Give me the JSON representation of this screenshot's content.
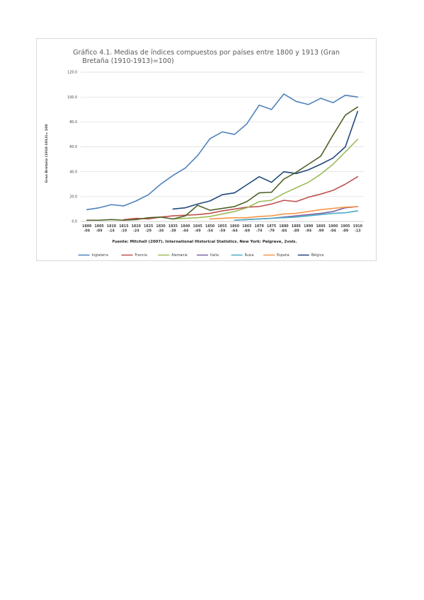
{
  "chart_data": {
    "type": "line",
    "title": "Gráfico 4.1. Medias de índices compuestos por países entre 1800 y 1913 (Gran Bretaña (1910-1913)=100)",
    "title_lines": [
      "Gráfico 4.1. Medias de índices compuestos por países entre 1800 y 1913 (Gran",
      "Bretaña (1910-1913)=100)"
    ],
    "ylabel": "Gran Bretaña (1910-1913)= 100",
    "xlabel": "",
    "source": "Fuente: Mitchell (2007). International  Historical Statistics. New York: Palgrave, 2vols.",
    "ylim": [
      0,
      120
    ],
    "yticks": [
      "0.0",
      "20.0",
      "40.0",
      "60.0",
      "80.0",
      "100.0",
      "120.0"
    ],
    "categories": [
      [
        "1800",
        "-04"
      ],
      [
        "1805",
        "-09"
      ],
      [
        "1810",
        "-14"
      ],
      [
        "1815",
        "-19"
      ],
      [
        "1820",
        "-24"
      ],
      [
        "1825",
        "-29"
      ],
      [
        "1830",
        "-34"
      ],
      [
        "1835",
        "-39"
      ],
      [
        "1840",
        "-44"
      ],
      [
        "1845",
        "-49"
      ],
      [
        "1850",
        "-54"
      ],
      [
        "1855",
        "-59"
      ],
      [
        "1860",
        "-64"
      ],
      [
        "1865",
        "-69"
      ],
      [
        "1870",
        "-74"
      ],
      [
        "1875",
        "-79"
      ],
      [
        "1880",
        "-84"
      ],
      [
        "1885",
        "-89"
      ],
      [
        "1890",
        "-94"
      ],
      [
        "1895",
        "-99"
      ],
      [
        "1900",
        "-04"
      ],
      [
        "1905",
        "-09"
      ],
      [
        "1910",
        "-13"
      ]
    ],
    "grid": true,
    "legend_position": "bottom",
    "series": [
      {
        "name": "Inglaterra",
        "color": "#4f81bd",
        "values": [
          9.5,
          11,
          13.5,
          12.5,
          16.5,
          21.5,
          30,
          37,
          43,
          53,
          66.5,
          72,
          70,
          78.5,
          93.5,
          90,
          102.5,
          96.5,
          94,
          99,
          95.5,
          101.5,
          100
        ]
      },
      {
        "name": "Francia",
        "color": "#c0504d",
        "values": [
          null,
          null,
          null,
          1.5,
          2.5,
          2,
          3.5,
          4.5,
          5,
          5.5,
          6.5,
          8.5,
          10,
          11.5,
          12,
          14,
          17,
          16,
          19.5,
          22,
          25,
          30,
          36
        ]
      },
      {
        "name": "Alemania",
        "color": "#9bbb59",
        "values": [
          null,
          null,
          null,
          null,
          null,
          null,
          null,
          2,
          2.5,
          3,
          4,
          6,
          8,
          11,
          16,
          17,
          22.5,
          27,
          31.5,
          38,
          46,
          56,
          66
        ]
      },
      {
        "name": "Italia",
        "color": "#8064a2",
        "values": [
          null,
          null,
          null,
          null,
          null,
          null,
          null,
          null,
          null,
          null,
          null,
          null,
          1,
          1.5,
          2,
          2.5,
          3.5,
          4.5,
          5.5,
          6.5,
          8,
          11,
          12
        ]
      },
      {
        "name": "Rusia",
        "color": "#4bacc6",
        "values": [
          null,
          null,
          null,
          null,
          null,
          null,
          null,
          null,
          null,
          null,
          null,
          null,
          1,
          1.5,
          2,
          2.5,
          3,
          3.5,
          4.5,
          5.5,
          6.5,
          7,
          8.5
        ]
      },
      {
        "name": "España",
        "color": "#f79646",
        "values": [
          null,
          null,
          null,
          null,
          null,
          null,
          null,
          null,
          null,
          null,
          2,
          2.5,
          3,
          3,
          4,
          4.5,
          6,
          6.5,
          8,
          9.5,
          10.5,
          11.5,
          12
        ]
      },
      {
        "name": "Bélgica",
        "color": "#1f497d",
        "values": [
          null,
          null,
          null,
          null,
          null,
          null,
          null,
          10,
          11,
          14,
          16.5,
          21.5,
          23,
          29.5,
          36,
          31.5,
          40,
          38.5,
          41.5,
          46,
          51,
          60,
          88.5
        ]
      },
      {
        "name": "",
        "color": "#4f6228",
        "legend": false,
        "values": [
          1,
          1,
          1.5,
          1,
          1.5,
          3,
          3.5,
          2,
          4.5,
          13,
          9,
          10.5,
          12,
          16,
          23,
          23.5,
          34,
          39.5,
          46,
          52.5,
          69.5,
          85.5,
          92
        ]
      }
    ]
  }
}
